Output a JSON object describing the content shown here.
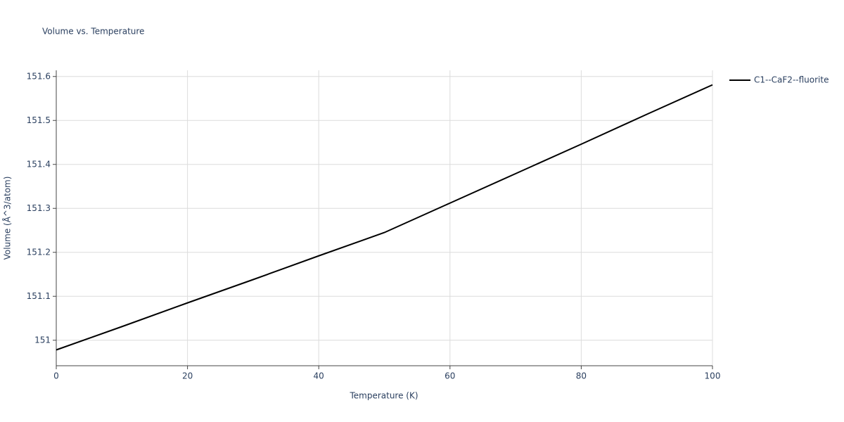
{
  "chart_data": {
    "type": "line",
    "title": "Volume vs. Temperature",
    "x_label": "Temperature (K)",
    "y_label": "Volume (Å^3/atom)",
    "x": [
      0,
      10,
      20,
      30,
      40,
      50,
      60,
      70,
      80,
      90,
      100
    ],
    "series": [
      {
        "name": "C1--CaF2--fluorite",
        "color": "#000000",
        "values": [
          150.978,
          151.031,
          151.085,
          151.138,
          151.192,
          151.245,
          151.312,
          151.379,
          151.446,
          151.514,
          151.581
        ]
      }
    ],
    "xlim": [
      0,
      100
    ],
    "xticks": [
      0,
      20,
      40,
      60,
      80,
      100
    ],
    "ylim": [
      150.942,
      151.614
    ],
    "yticks": [
      151,
      151.1,
      151.2,
      151.3,
      151.4,
      151.5,
      151.6
    ],
    "grid": true,
    "legend": "right"
  }
}
